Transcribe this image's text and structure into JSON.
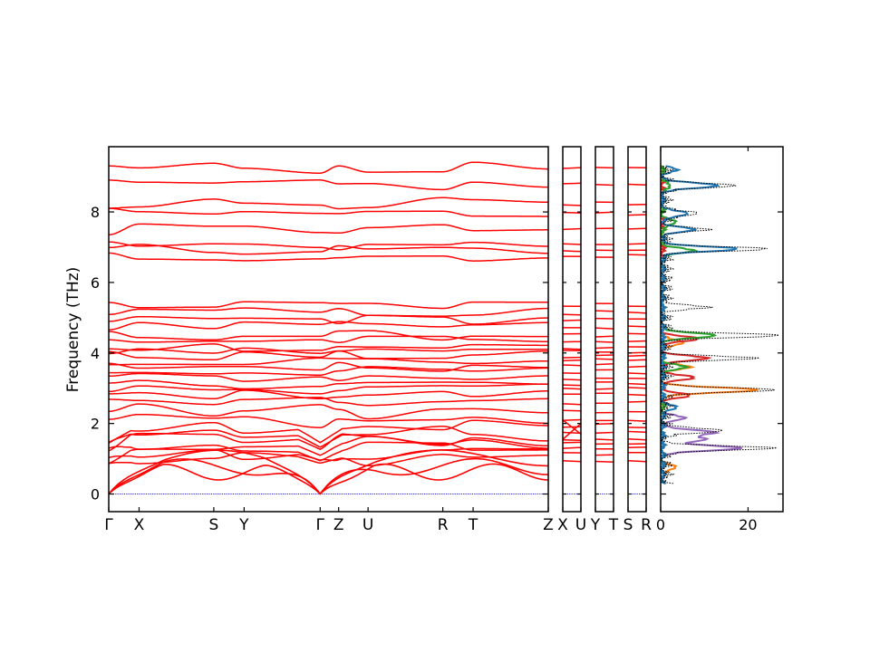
{
  "chart_data": {
    "type": "line",
    "ylabel": "Frequency (THz)",
    "ylim": [
      -0.5,
      9.85
    ],
    "yticks": [
      0,
      2,
      4,
      6,
      8
    ],
    "line_colors": {
      "bands": "#ff0000",
      "zero_line": "#0000cc",
      "dos_total": "#000000"
    },
    "band_panels": [
      {
        "segments": [
          "Γ-X",
          "X-S",
          "S-Y",
          "Y-Γ",
          "Γ-Z",
          "Z-U",
          "U-R",
          "R-T",
          "T-Z"
        ],
        "xticks": [
          {
            "pos": 0.0,
            "label": "Γ"
          },
          {
            "pos": 0.069,
            "label": "X"
          },
          {
            "pos": 0.239,
            "label": "S"
          },
          {
            "pos": 0.308,
            "label": "Y"
          },
          {
            "pos": 0.481,
            "label": "Γ"
          },
          {
            "pos": 0.523,
            "label": "Z"
          },
          {
            "pos": 0.59,
            "label": "U"
          },
          {
            "pos": 0.76,
            "label": "R"
          },
          {
            "pos": 0.829,
            "label": "T"
          },
          {
            "pos": 1.0,
            "label": "Z"
          }
        ]
      },
      {
        "segments": [
          "X-U"
        ],
        "xticks": [
          {
            "pos": 0.0,
            "label": "X"
          },
          {
            "pos": 1.0,
            "label": "U"
          }
        ]
      },
      {
        "segments": [
          "Y-T"
        ],
        "xticks": [
          {
            "pos": 0.0,
            "label": "Y"
          },
          {
            "pos": 1.0,
            "label": "T"
          }
        ]
      },
      {
        "segments": [
          "S-R"
        ],
        "xticks": [
          {
            "pos": 0.0,
            "label": "S"
          },
          {
            "pos": 1.0,
            "label": "R"
          }
        ]
      }
    ],
    "bands_optical_THz": [
      0.95,
      1.12,
      1.28,
      1.42,
      1.55,
      1.72,
      1.95,
      2.1,
      2.35,
      2.6,
      2.82,
      2.98,
      3.12,
      3.3,
      3.48,
      3.62,
      3.78,
      3.92,
      4.05,
      4.18,
      4.35,
      4.5,
      4.75,
      4.95,
      5.15,
      5.35,
      6.75,
      6.95,
      7.05,
      7.5,
      7.95,
      8.25,
      8.75,
      9.25
    ],
    "dos": {
      "xlim": [
        0,
        28
      ],
      "xticks": [
        0,
        20
      ],
      "series": [
        {
          "color": "#9467bd",
          "peaks": [
            [
              1.3,
              18
            ],
            [
              1.75,
              12
            ],
            [
              1.55,
              10
            ],
            [
              2.15,
              5
            ]
          ]
        },
        {
          "color": "#ff7f0e",
          "peaks": [
            [
              2.95,
              22
            ],
            [
              0.75,
              3
            ],
            [
              3.6,
              6
            ],
            [
              4.3,
              5
            ]
          ]
        },
        {
          "color": "#d62728",
          "peaks": [
            [
              3.85,
              10
            ],
            [
              4.4,
              8
            ],
            [
              3.3,
              7
            ],
            [
              2.8,
              6
            ]
          ]
        },
        {
          "color": "#2ca02c",
          "peaks": [
            [
              4.5,
              12
            ],
            [
              3.6,
              5
            ],
            [
              6.9,
              7
            ],
            [
              7.7,
              3
            ],
            [
              8.75,
              2
            ]
          ]
        },
        {
          "color": "#1f77b4",
          "peaks": [
            [
              2.45,
              3
            ],
            [
              6.95,
              17
            ],
            [
              8.75,
              13
            ],
            [
              7.5,
              7
            ],
            [
              7.95,
              6
            ],
            [
              9.2,
              3
            ]
          ]
        }
      ],
      "total": {
        "color": "#000000",
        "peaks": [
          [
            1.3,
            25
          ],
          [
            1.8,
            14
          ],
          [
            2.95,
            26
          ],
          [
            3.85,
            20
          ],
          [
            4.5,
            26
          ],
          [
            5.3,
            9
          ],
          [
            6.95,
            23
          ],
          [
            8.75,
            17
          ],
          [
            7.5,
            9
          ],
          [
            7.95,
            8
          ]
        ]
      }
    }
  }
}
